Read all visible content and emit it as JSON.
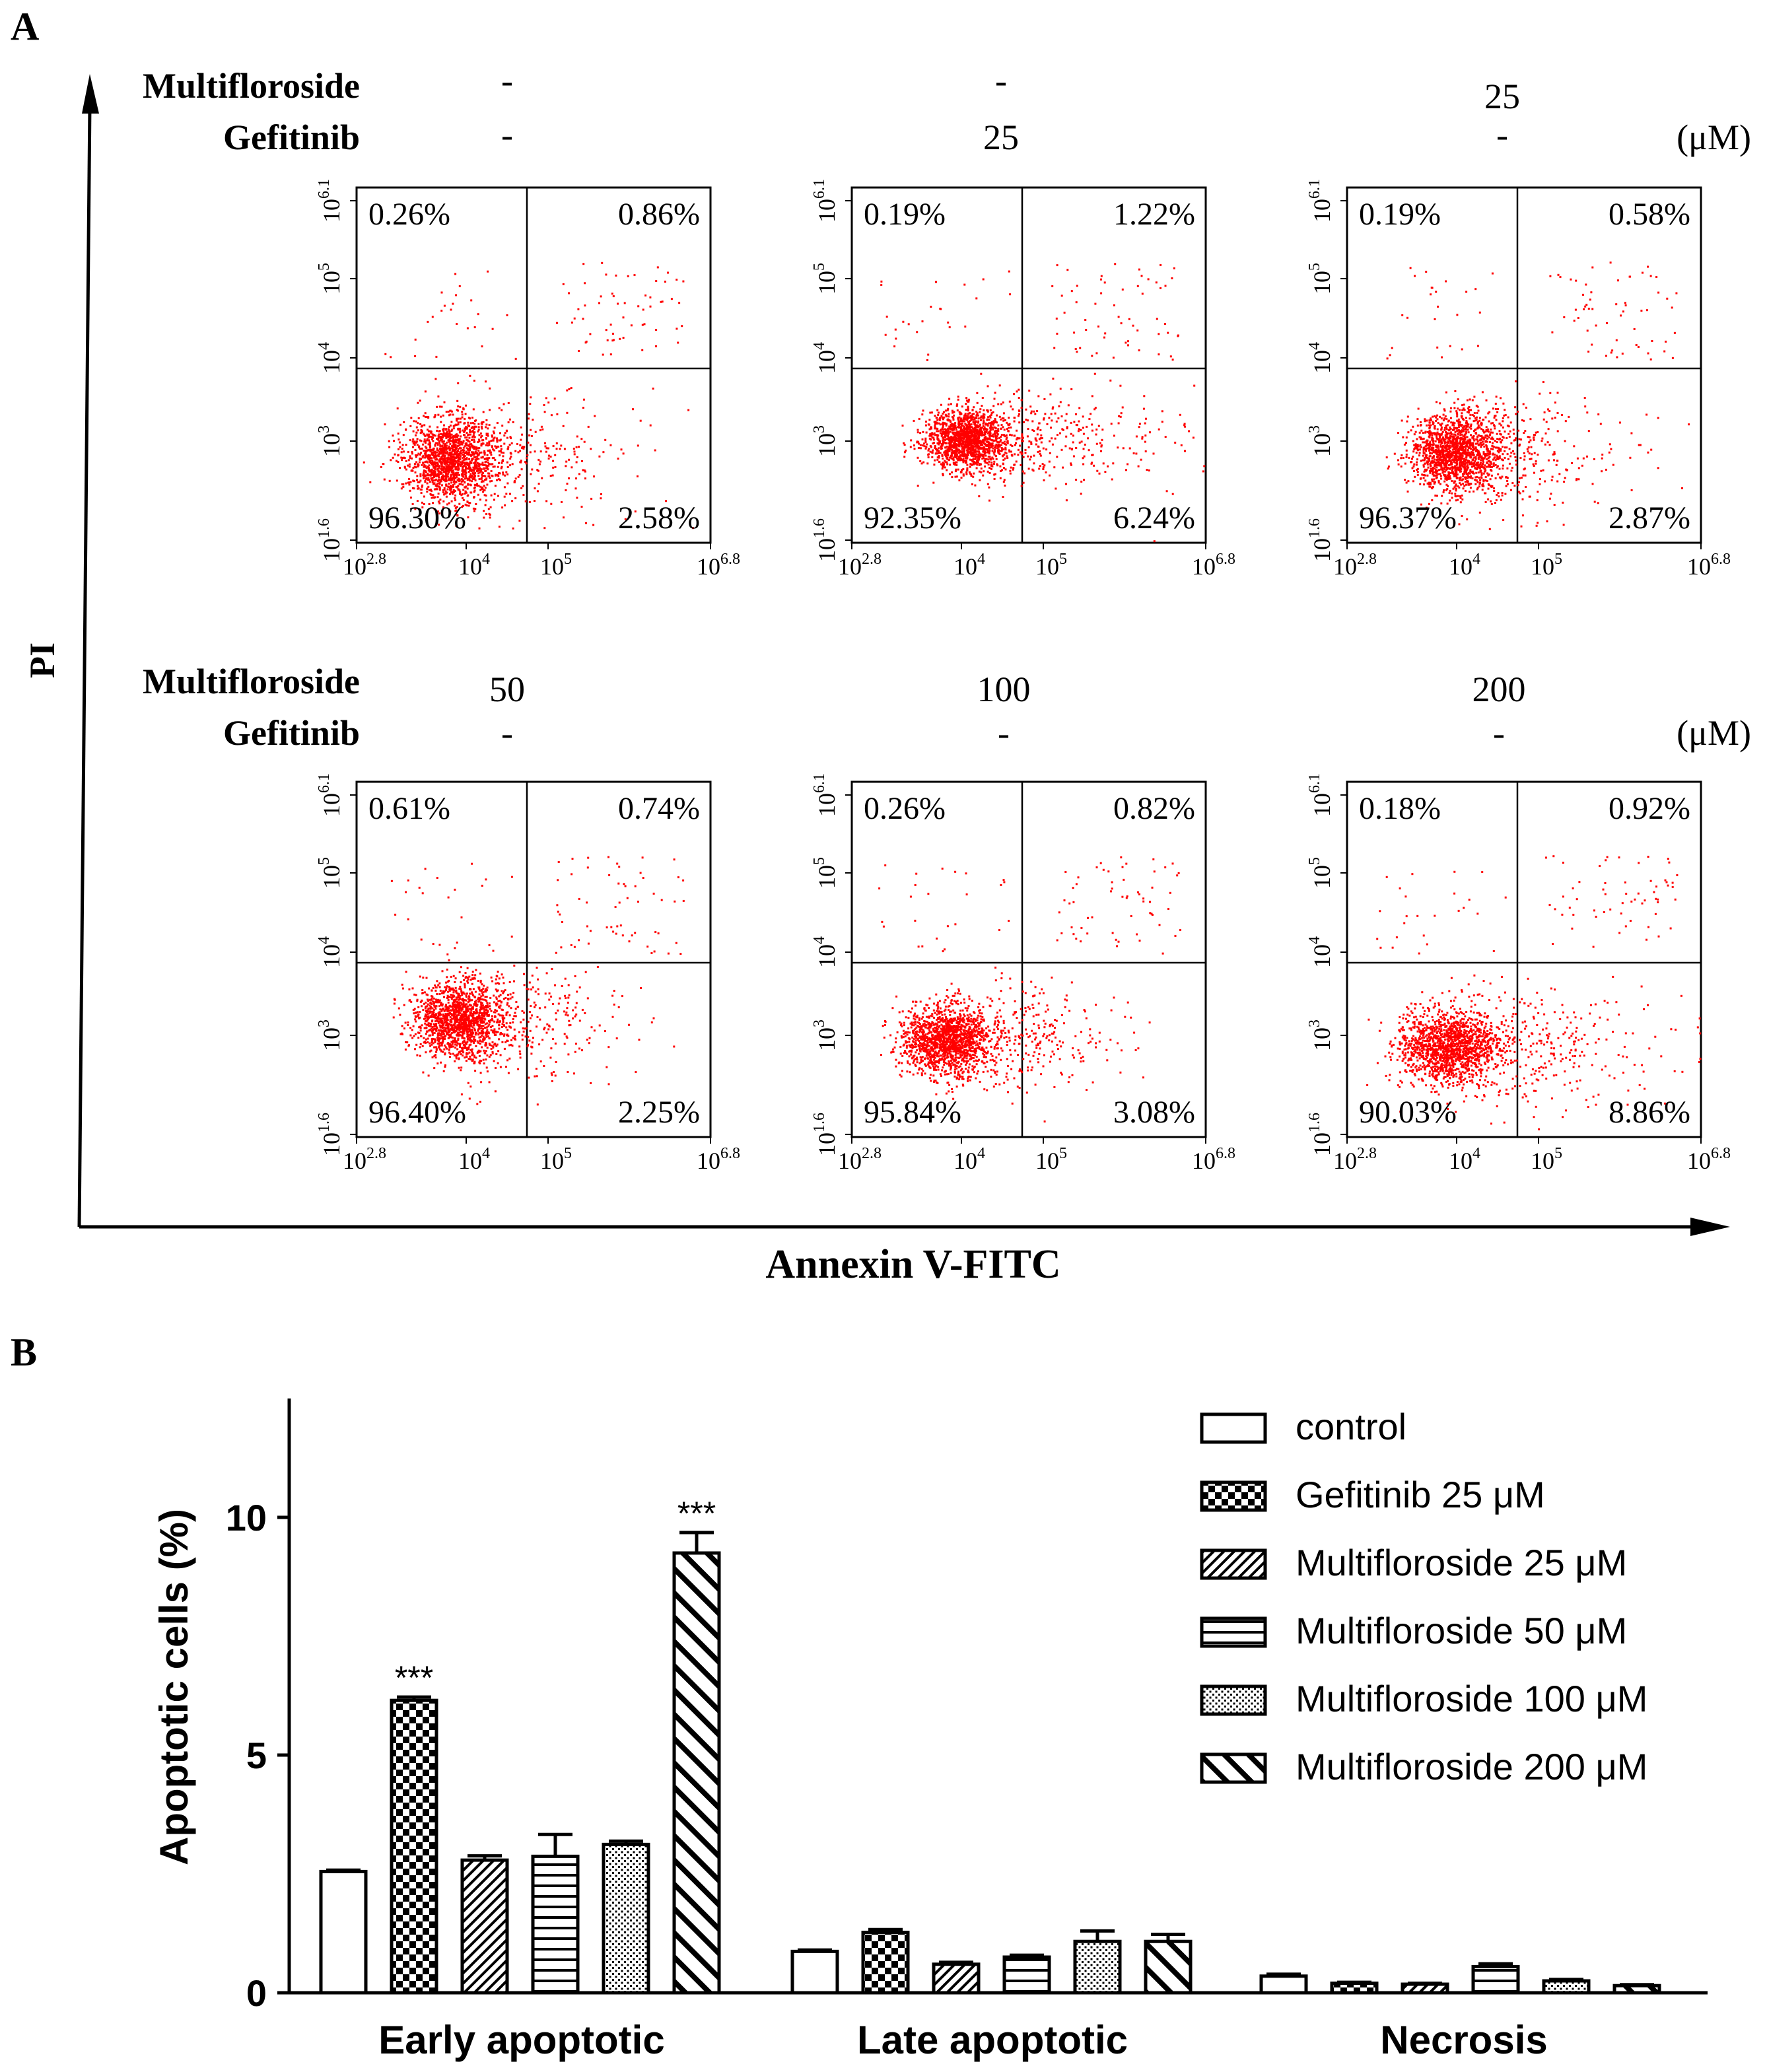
{
  "panel_a": {
    "label": "A",
    "row_labels": {
      "multifloroside": "Multifloroside",
      "gefitinib": "Gefitinib",
      "unit": "(μM)"
    },
    "y_axis_title": "PI",
    "x_axis_title": "Annexin V-FITC",
    "x_tick_labels": {
      "t1": {
        "base": "10",
        "exp": "2.8"
      },
      "t2": {
        "base": "10",
        "exp": "4"
      },
      "t3": {
        "base": "10",
        "exp": "5"
      },
      "t4": {
        "base": "10",
        "exp": "6.8"
      }
    },
    "y_tick_labels": {
      "t1": {
        "base": "10",
        "exp": "1.6"
      },
      "t2": {
        "base": "10",
        "exp": "3"
      },
      "t3": {
        "base": "10",
        "exp": "4"
      },
      "t4": {
        "base": "10",
        "exp": "5"
      },
      "t5": {
        "base": "10",
        "exp": "6.1"
      }
    },
    "plots": [
      {
        "multifloroside": "-",
        "gefitinib": "-",
        "q_ul": "0.26%",
        "q_ur": "0.86%",
        "q_ll": "96.30%",
        "q_lr": "2.58%"
      },
      {
        "multifloroside": "-",
        "gefitinib": "25",
        "q_ul": "0.19%",
        "q_ur": "1.22%",
        "q_ll": "92.35%",
        "q_lr": "6.24%"
      },
      {
        "multifloroside": "25",
        "gefitinib": "-",
        "q_ul": "0.19%",
        "q_ur": "0.58%",
        "q_ll": "96.37%",
        "q_lr": "2.87%"
      },
      {
        "multifloroside": "50",
        "gefitinib": "-",
        "q_ul": "0.61%",
        "q_ur": "0.74%",
        "q_ll": "96.40%",
        "q_lr": "2.25%"
      },
      {
        "multifloroside": "100",
        "gefitinib": "-",
        "q_ul": "0.26%",
        "q_ur": "0.82%",
        "q_ll": "95.84%",
        "q_lr": "3.08%"
      },
      {
        "multifloroside": "200",
        "gefitinib": "-",
        "q_ul": "0.18%",
        "q_ur": "0.92%",
        "q_ll": "90.03%",
        "q_lr": "8.86%"
      }
    ]
  },
  "panel_b": {
    "label": "B"
  },
  "chart_data": {
    "type": "bar",
    "title": "",
    "xlabel": "",
    "ylabel": "Apoptotic cells (%)",
    "ylim": [
      0,
      12.5
    ],
    "yticks": [
      0,
      5,
      10
    ],
    "categories": [
      "Early apoptotic",
      "Late apoptotic",
      "Necrosis"
    ],
    "series": [
      {
        "name": "control",
        "pattern": "none",
        "values": [
          2.55,
          0.87,
          0.35
        ],
        "errors": [
          0.03,
          0.03,
          0.04
        ],
        "sig": [
          "",
          "",
          ""
        ]
      },
      {
        "name": "Gefitinib 25 μM",
        "pattern": "checker",
        "values": [
          6.15,
          1.27,
          0.2
        ],
        "errors": [
          0.07,
          0.06,
          0.02
        ],
        "sig": [
          "***",
          "",
          ""
        ]
      },
      {
        "name": "Multifloroside 25 μM",
        "pattern": "diag-fine",
        "values": [
          2.79,
          0.6,
          0.18
        ],
        "errors": [
          0.09,
          0.04,
          0.02
        ],
        "sig": [
          "",
          "",
          ""
        ]
      },
      {
        "name": "Multifloroside 50 μM",
        "pattern": "horizontal",
        "values": [
          2.87,
          0.75,
          0.55
        ],
        "errors": [
          0.46,
          0.04,
          0.06
        ],
        "sig": [
          "",
          "",
          ""
        ]
      },
      {
        "name": "Multifloroside 100 μM",
        "pattern": "dots",
        "values": [
          3.12,
          1.08,
          0.25
        ],
        "errors": [
          0.07,
          0.22,
          0.03
        ],
        "sig": [
          "",
          "",
          ""
        ]
      },
      {
        "name": "Multifloroside 200 μM",
        "pattern": "diag-wide",
        "values": [
          9.25,
          1.08,
          0.15
        ],
        "errors": [
          0.43,
          0.15,
          0.02
        ],
        "sig": [
          "***",
          "",
          ""
        ]
      }
    ]
  }
}
